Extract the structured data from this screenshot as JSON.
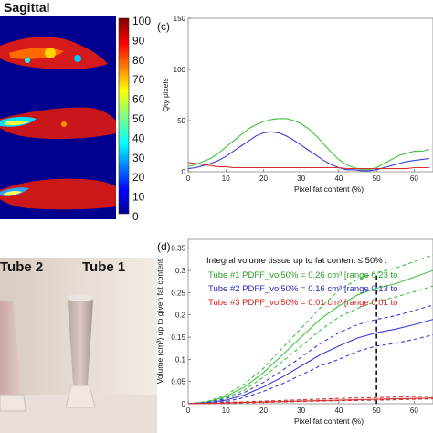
{
  "heatmap_panel": {
    "title": "Sagittal",
    "colorbar_ticks": [
      "100",
      "90",
      "80",
      "70",
      "60",
      "50",
      "40",
      "30",
      "20",
      "10",
      "0"
    ]
  },
  "photo_panel": {
    "tube2_label": "Tube 2",
    "tube1_label": "Tube 1"
  },
  "chart_data": [
    {
      "type": "line",
      "panel_label": "(c)",
      "xlabel": "Pixel fat content (%)",
      "ylabel": "Qty pixels",
      "xlim": [
        0,
        65
      ],
      "ylim": [
        0,
        150
      ],
      "x_ticks": [
        "0",
        "10",
        "20",
        "30",
        "40",
        "50",
        "60"
      ],
      "y_ticks": [
        "0",
        "50",
        "100",
        "150"
      ],
      "grid": false,
      "series": [
        {
          "color": "#3ec43e",
          "x": [
            0,
            2,
            4,
            6,
            8,
            10,
            12,
            14,
            16,
            18,
            20,
            22,
            24,
            26,
            28,
            30,
            32,
            34,
            36,
            38,
            40,
            42,
            44,
            46,
            48,
            50,
            52,
            54,
            56,
            58,
            60,
            62,
            64
          ],
          "y": [
            5,
            7,
            10,
            13,
            18,
            24,
            30,
            36,
            42,
            46,
            49,
            51,
            52,
            52,
            50,
            47,
            42,
            35,
            27,
            19,
            12,
            7,
            4,
            2,
            2,
            4,
            8,
            12,
            16,
            18,
            20,
            20,
            22
          ]
        },
        {
          "color": "#3b3bd6",
          "x": [
            0,
            2,
            4,
            6,
            8,
            10,
            12,
            14,
            16,
            18,
            20,
            22,
            24,
            26,
            28,
            30,
            32,
            34,
            36,
            38,
            40,
            42,
            44,
            46,
            48,
            50,
            52,
            54,
            56,
            58,
            60,
            62,
            64
          ],
          "y": [
            3,
            4,
            6,
            8,
            11,
            15,
            20,
            25,
            30,
            35,
            38,
            39,
            38,
            35,
            31,
            26,
            21,
            16,
            11,
            7,
            4,
            2,
            2,
            1,
            1,
            2,
            4,
            6,
            8,
            10,
            11,
            12,
            13
          ]
        },
        {
          "color": "#d63131",
          "x": [
            0,
            2,
            4,
            6,
            8,
            10,
            12,
            14,
            16,
            18,
            20,
            22,
            24,
            26,
            28,
            30,
            32,
            34,
            36,
            38,
            40,
            42,
            44,
            46,
            48,
            50,
            52,
            54,
            56,
            58,
            60,
            62,
            64
          ],
          "y": [
            9,
            8,
            7,
            6,
            5,
            5,
            4,
            4,
            4,
            4,
            4,
            4,
            4,
            4,
            4,
            4,
            4,
            4,
            4,
            4,
            4,
            3,
            3,
            3,
            3,
            3,
            3,
            3,
            3,
            3,
            4,
            4,
            4
          ]
        }
      ]
    },
    {
      "type": "line",
      "panel_label": "(d)",
      "xlabel": "Pixel fat content (%)",
      "ylabel": "Volume (cm³) up to given fat content",
      "xlim": [
        0,
        65
      ],
      "ylim": [
        0,
        0.37
      ],
      "x_ticks": [
        "0",
        "10",
        "20",
        "30",
        "40",
        "50",
        "60"
      ],
      "y_ticks": [
        "0",
        "0.05",
        "0.1",
        "0.15",
        "0.2",
        "0.25",
        "0.3",
        "0.35"
      ],
      "grid": false,
      "legend_title": "Integral volume tissue up to fat content ≤ 50% :",
      "legend_entries": [
        {
          "text": "Tube #1  PDFF_vol50% = 0.26 cm³  [range 0.23 to",
          "color": "#2ca02c"
        },
        {
          "text": "Tube #2  PDFF_vol50% = 0.16 cm³  [range 0.13 to",
          "color": "#2b2bb8"
        },
        {
          "text": "Tube #3  PDFF_vol50% = 0.01 cm³  [range 0.01 to",
          "color": "#d62020"
        }
      ],
      "threshold_x": 50,
      "series": [
        {
          "color": "#3ec43e",
          "style": "solid",
          "x": [
            0,
            5,
            10,
            15,
            20,
            25,
            30,
            35,
            40,
            45,
            50,
            55,
            60,
            65
          ],
          "y": [
            0,
            0.004,
            0.016,
            0.038,
            0.07,
            0.11,
            0.15,
            0.19,
            0.22,
            0.245,
            0.26,
            0.27,
            0.285,
            0.3
          ]
        },
        {
          "color": "#3ec43e",
          "style": "dashed",
          "x": [
            0,
            5,
            10,
            15,
            20,
            25,
            30,
            35,
            40,
            45,
            50,
            55,
            60,
            65
          ],
          "y": [
            0,
            0.005,
            0.02,
            0.045,
            0.08,
            0.125,
            0.17,
            0.215,
            0.255,
            0.28,
            0.295,
            0.305,
            0.32,
            0.335
          ]
        },
        {
          "color": "#3ec43e",
          "style": "dashed",
          "x": [
            0,
            5,
            10,
            15,
            20,
            25,
            30,
            35,
            40,
            45,
            50,
            55,
            60,
            65
          ],
          "y": [
            0,
            0.003,
            0.013,
            0.031,
            0.06,
            0.095,
            0.13,
            0.165,
            0.195,
            0.215,
            0.23,
            0.24,
            0.252,
            0.265
          ]
        },
        {
          "color": "#3b3bd6",
          "style": "solid",
          "x": [
            0,
            5,
            10,
            15,
            20,
            25,
            30,
            35,
            40,
            45,
            50,
            55,
            60,
            65
          ],
          "y": [
            0,
            0.002,
            0.008,
            0.02,
            0.038,
            0.06,
            0.085,
            0.11,
            0.13,
            0.148,
            0.16,
            0.168,
            0.178,
            0.19
          ]
        },
        {
          "color": "#3b3bd6",
          "style": "dashed",
          "x": [
            0,
            5,
            10,
            15,
            20,
            25,
            30,
            35,
            40,
            45,
            50,
            55,
            60,
            65
          ],
          "y": [
            0,
            0.003,
            0.011,
            0.026,
            0.048,
            0.075,
            0.105,
            0.135,
            0.16,
            0.178,
            0.19,
            0.198,
            0.21,
            0.222
          ]
        },
        {
          "color": "#3b3bd6",
          "style": "dashed",
          "x": [
            0,
            5,
            10,
            15,
            20,
            25,
            30,
            35,
            40,
            45,
            50,
            55,
            60,
            65
          ],
          "y": [
            0,
            0.001,
            0.005,
            0.014,
            0.028,
            0.045,
            0.065,
            0.085,
            0.1,
            0.118,
            0.13,
            0.136,
            0.145,
            0.155
          ]
        },
        {
          "color": "#d63131",
          "style": "solid",
          "x": [
            0,
            5,
            10,
            15,
            20,
            25,
            30,
            35,
            40,
            45,
            50,
            55,
            60,
            65
          ],
          "y": [
            0,
            0.001,
            0.002,
            0.003,
            0.004,
            0.005,
            0.006,
            0.007,
            0.008,
            0.009,
            0.01,
            0.011,
            0.012,
            0.013
          ]
        },
        {
          "color": "#d63131",
          "style": "dashed",
          "x": [
            0,
            5,
            10,
            15,
            20,
            25,
            30,
            35,
            40,
            45,
            50,
            55,
            60,
            65
          ],
          "y": [
            0,
            0.0015,
            0.003,
            0.0045,
            0.006,
            0.0075,
            0.009,
            0.0105,
            0.012,
            0.013,
            0.014,
            0.015,
            0.016,
            0.017
          ]
        },
        {
          "color": "#d63131",
          "style": "dashed",
          "x": [
            0,
            5,
            10,
            15,
            20,
            25,
            30,
            35,
            40,
            45,
            50,
            55,
            60,
            65
          ],
          "y": [
            0,
            0.0005,
            0.001,
            0.002,
            0.003,
            0.004,
            0.005,
            0.006,
            0.007,
            0.0075,
            0.008,
            0.009,
            0.01,
            0.011
          ]
        }
      ]
    }
  ]
}
